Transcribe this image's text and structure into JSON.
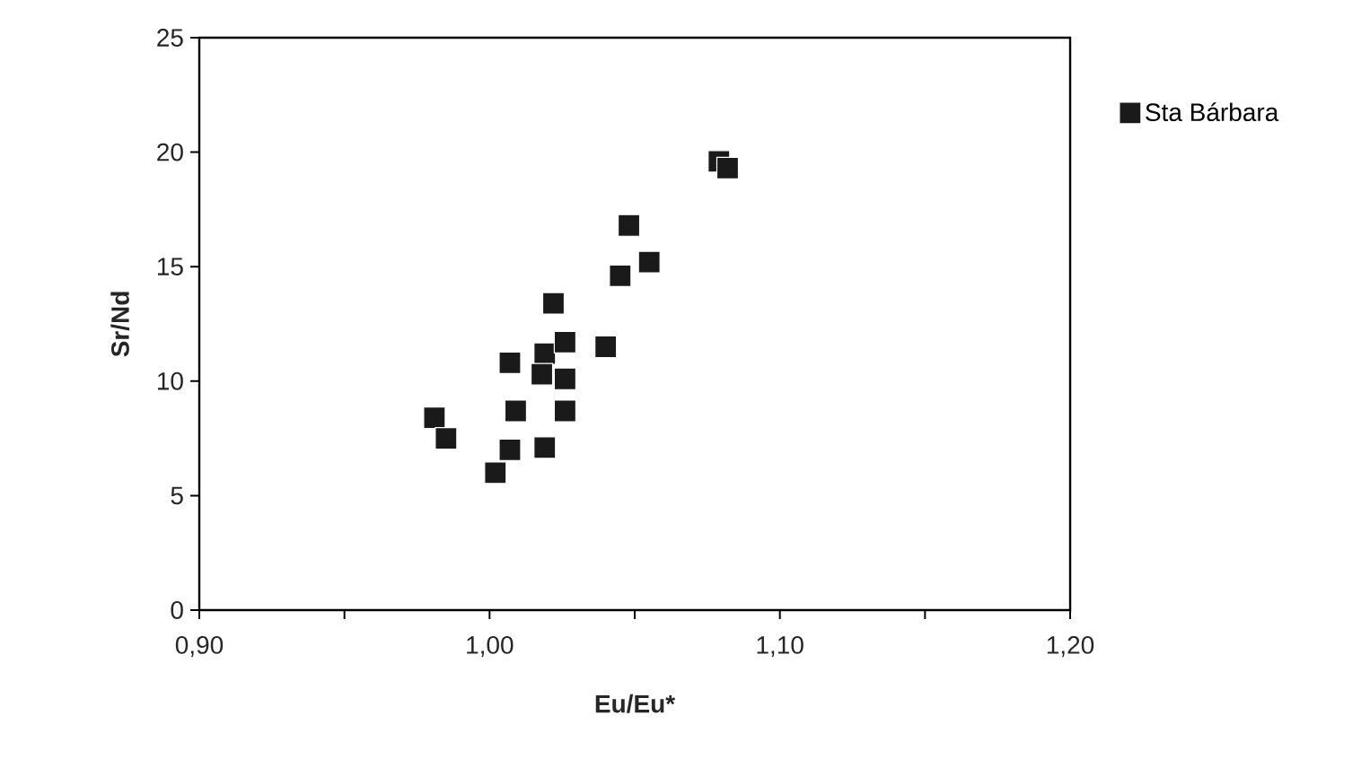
{
  "chart_data": {
    "type": "scatter",
    "xlabel": "Eu/Eu*",
    "ylabel": "Sr/Nd",
    "xlim": [
      0.9,
      1.2
    ],
    "ylim": [
      0,
      25
    ],
    "xticks": [
      {
        "value": 0.9,
        "label": "0,90"
      },
      {
        "value": 0.95,
        "label": null
      },
      {
        "value": 1.0,
        "label": "1,00"
      },
      {
        "value": 1.05,
        "label": null
      },
      {
        "value": 1.1,
        "label": "1,10"
      },
      {
        "value": 1.15,
        "label": null
      },
      {
        "value": 1.2,
        "label": "1,20"
      }
    ],
    "yticks": [
      0,
      5,
      10,
      15,
      20,
      25
    ],
    "marker": "square",
    "grid": false,
    "legend": "top right",
    "series": [
      {
        "name": "Sta Bárbara",
        "color": "#1a1a1a",
        "x": [
          1.079,
          1.029,
          1.019,
          0.981,
          0.985,
          1.002,
          1.007,
          1.007,
          1.009,
          1.018,
          1.019,
          1.022,
          1.026,
          1.026,
          1.026,
          1.04,
          1.045,
          1.048,
          1.055,
          1.082
        ],
        "values": [
          19.6,
          null,
          11.2,
          8.4,
          7.5,
          6.0,
          7.0,
          10.8,
          8.7,
          10.3,
          7.1,
          13.4,
          10.1,
          8.7,
          11.7,
          11.5,
          14.6,
          16.8,
          15.2,
          19.3
        ]
      }
    ]
  }
}
